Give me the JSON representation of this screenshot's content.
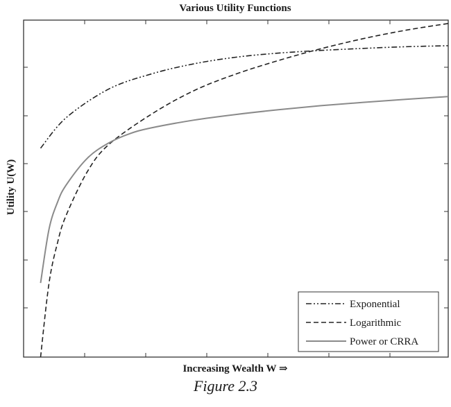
{
  "caption": "Figure 2.3",
  "chart_data": {
    "type": "line",
    "title": "Various Utility Functions",
    "xlabel": "Increasing Wealth W ⇒",
    "ylabel": "Utility U(W)",
    "xlim": [
      0,
      100
    ],
    "ylim": [
      0,
      100
    ],
    "grid": false,
    "tick_labels": false,
    "legend_position": "bottom-right",
    "series": [
      {
        "name": "Exponential",
        "style": "dash-dot",
        "color": "#222222",
        "x": [
          4,
          10,
          20,
          30,
          40,
          50,
          60,
          70,
          80,
          90,
          100
        ],
        "y": [
          62,
          71,
          79.5,
          84,
          87,
          89,
          90.2,
          91,
          91.6,
          92.1,
          92.4
        ]
      },
      {
        "name": "Logarithmic",
        "style": "dashed",
        "color": "#222222",
        "x": [
          4,
          6,
          8,
          10,
          15,
          20,
          30,
          40,
          50,
          60,
          70,
          80,
          90,
          100
        ],
        "y": [
          0,
          22,
          34,
          42,
          55,
          63,
          72,
          79,
          84,
          88,
          91.5,
          94.5,
          97,
          99
        ]
      },
      {
        "name": "Power or CRRA",
        "style": "solid",
        "color": "#8a8a8a",
        "x": [
          4,
          6,
          8,
          10,
          15,
          20,
          25,
          30,
          40,
          50,
          60,
          70,
          80,
          90,
          100
        ],
        "y": [
          22,
          38,
          46,
          51,
          59,
          63.5,
          66.3,
          68,
          70.3,
          72,
          73.4,
          74.6,
          75.6,
          76.5,
          77.3
        ]
      }
    ]
  }
}
